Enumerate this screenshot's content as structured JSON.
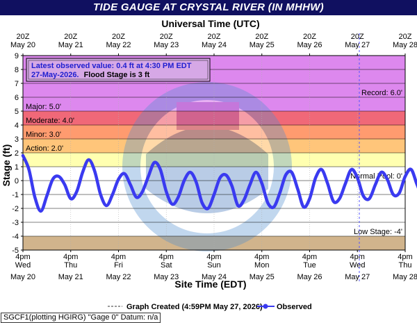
{
  "title": "TIDE GAUGE AT CRYSTAL RIVER (IN MHHW)",
  "footer_text": "SGCF1(plotting HGIRG) \"Gage 0\" Datum: n/a",
  "chart_data": {
    "type": "line",
    "top_axis_title": "Universal Time (UTC)",
    "xlabel": "Site Time (EDT)",
    "ylabel": "Stage (ft)",
    "ylim": [
      -5,
      9
    ],
    "y_ticks": [
      9,
      8,
      7,
      6,
      5,
      4,
      3,
      2,
      1,
      0,
      -1,
      -2,
      -3,
      -4,
      -5
    ],
    "x_days": [
      "May 20",
      "May 21",
      "May 22",
      "May 23",
      "May 24",
      "May 25",
      "May 26",
      "May 27",
      "May 28"
    ],
    "top_hour": "20Z",
    "bottom_hour": "4pm",
    "bottom_weekdays": [
      "Wed",
      "Thu",
      "Fri",
      "Sat",
      "Sun",
      "Mon",
      "Tue",
      "Wed",
      "Thu"
    ],
    "latest": {
      "line1": "Latest observed value: 0.4 ft at 4:30 PM EDT",
      "line2_date": "27-May-2026.",
      "line2_flood": "Flood Stage is 3 ft"
    },
    "bands": [
      {
        "from": 5,
        "to": 9,
        "color": "#dd88ee"
      },
      {
        "from": 4,
        "to": 5,
        "color": "#f06878"
      },
      {
        "from": 3,
        "to": 4,
        "color": "#ff9b6f"
      },
      {
        "from": 2,
        "to": 3,
        "color": "#ffc57a"
      },
      {
        "from": 1,
        "to": 2,
        "color": "#ffffb0"
      },
      {
        "from": -4,
        "to": 1,
        "color": "#ffffff"
      },
      {
        "from": -5,
        "to": -4,
        "color": "#d1b48c"
      }
    ],
    "thresholds": [
      {
        "label": "Record: 6.0'",
        "value": 6,
        "side": "right"
      },
      {
        "label": "Major: 5.0'",
        "value": 5,
        "side": "left"
      },
      {
        "label": "Moderate: 4.0'",
        "value": 4,
        "side": "left"
      },
      {
        "label": "Minor: 3.0'",
        "value": 3,
        "side": "left"
      },
      {
        "label": "Action: 2.0'",
        "value": 2,
        "side": "left"
      },
      {
        "label": "Normal Pool: 0'",
        "value": 0,
        "side": "right"
      },
      {
        "label": "Low Stage: -4'",
        "value": -4,
        "side": "right"
      }
    ],
    "legend": {
      "created_label": "Graph Created (4:59PM May 27, 2026)",
      "observed_label": "Observed"
    },
    "series": [
      {
        "name": "Observed",
        "color": "#3a3af0",
        "x_start": "May 20 4pm",
        "x_step_days": 0.125,
        "values": [
          1.8,
          0.8,
          -1.2,
          -2.2,
          -1.1,
          0.1,
          0.3,
          -0.3,
          -1.3,
          -0.8,
          0.6,
          1.5,
          0.7,
          -1.0,
          -1.8,
          -1.0,
          0.1,
          0.5,
          -0.3,
          -1.2,
          -0.8,
          0.3,
          1.3,
          0.8,
          -0.8,
          -1.7,
          -1.2,
          0.0,
          0.6,
          -0.1,
          -1.6,
          -2.0,
          -1.0,
          0.2,
          0.4,
          -0.4,
          -1.8,
          -1.4,
          -0.3,
          0.6,
          -0.2,
          -1.6,
          -1.9,
          -0.9,
          0.4,
          0.6,
          -0.6,
          -1.9,
          -1.3,
          0.2,
          0.8,
          -0.2,
          -1.5,
          -1.3,
          -0.2,
          0.8,
          0.2,
          -1.1,
          -1.3,
          -0.3,
          0.6,
          0.1,
          -1.0,
          -0.9,
          0.3,
          0.8,
          -0.3,
          -1.2,
          -0.6,
          0.4,
          0.4,
          -1.2,
          -1.4,
          -0.3,
          0.9,
          0.6,
          -0.6,
          -1.3,
          -0.5,
          0.6,
          0.5,
          -1.0,
          -1.3,
          -0.2,
          1.0,
          0.7,
          -0.5,
          -1.4,
          -0.6,
          0.6,
          1.3,
          0.8,
          0.2,
          0.7,
          0.5,
          0.4
        ]
      }
    ]
  }
}
